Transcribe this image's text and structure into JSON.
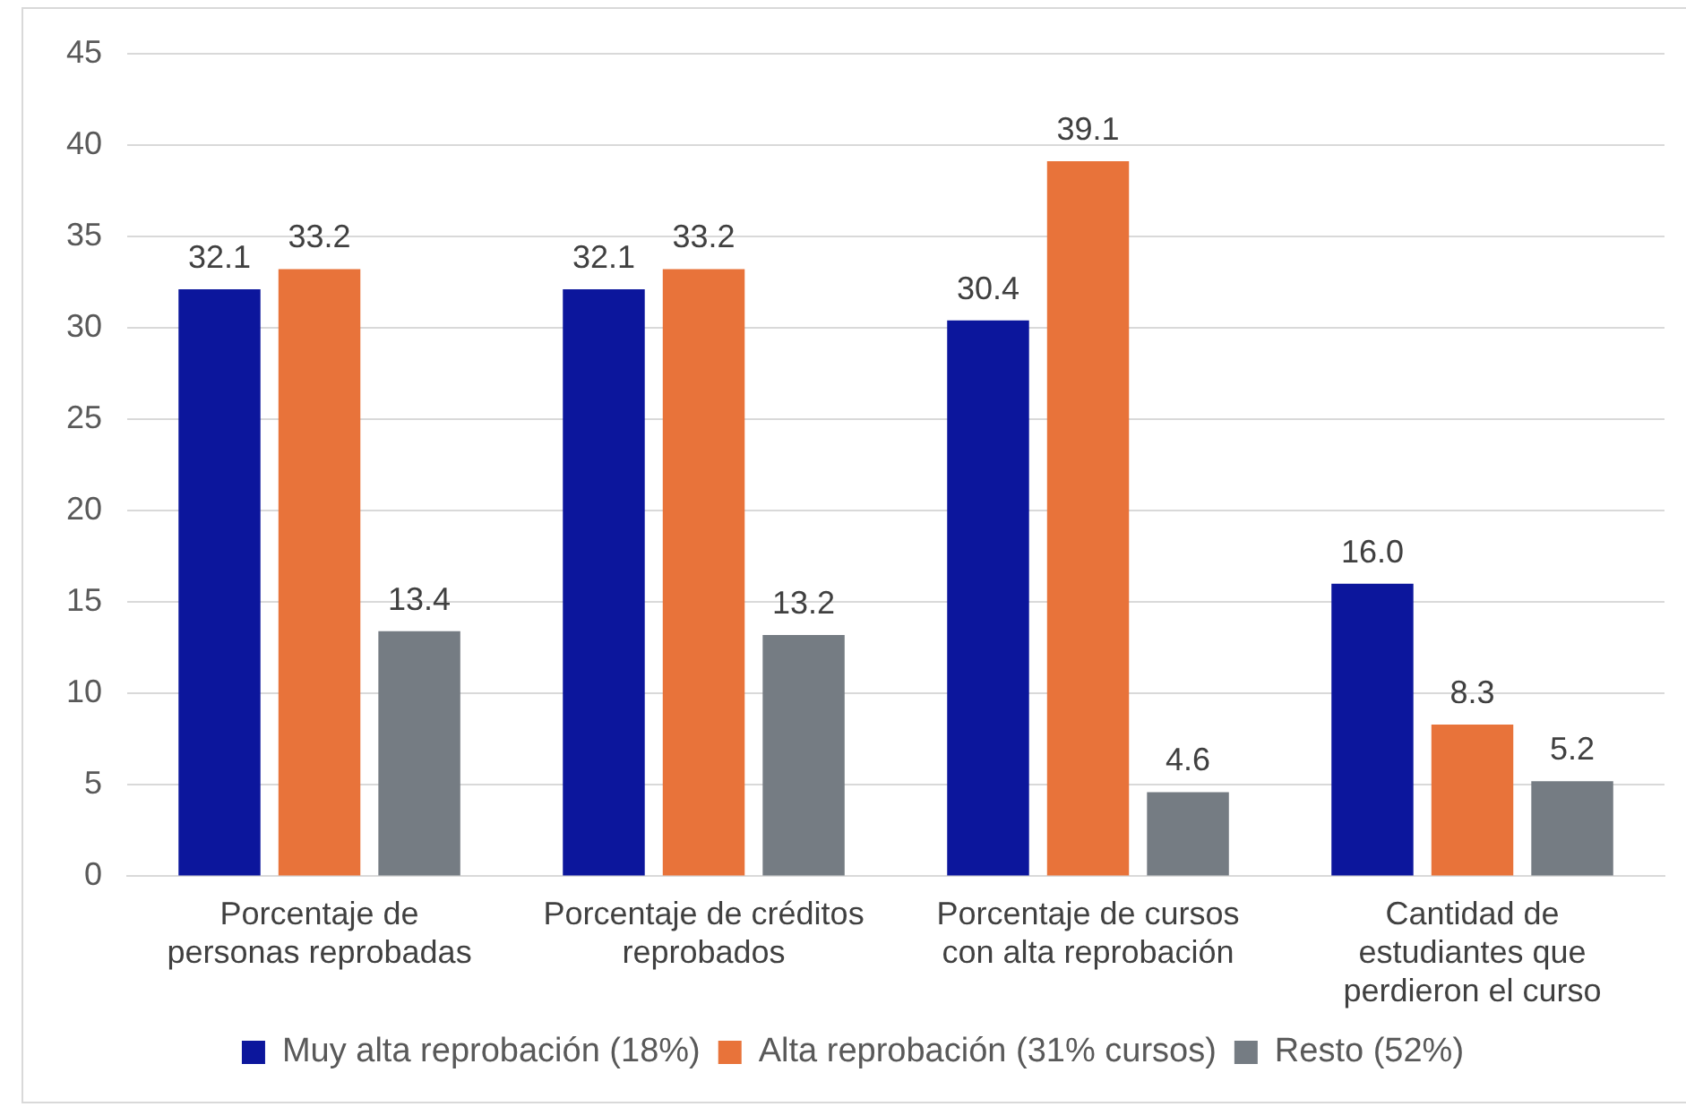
{
  "chart_data": {
    "type": "bar",
    "categories": [
      "Porcentaje de personas reprobadas",
      "Porcentaje de créditos reprobados",
      "Porcentaje de cursos con alta reprobación",
      "Cantidad de estudiantes que perdieron el curso"
    ],
    "series": [
      {
        "name": "Muy alta reprobación (18%)",
        "color": "#0c169c",
        "values": [
          32.1,
          32.1,
          30.4,
          16.0
        ],
        "value_labels": [
          "32.1",
          "32.1",
          "30.4",
          "16.0"
        ]
      },
      {
        "name": "Alta reprobación (31% cursos)",
        "color": "#e8733a",
        "values": [
          33.2,
          33.2,
          39.1,
          8.3
        ],
        "value_labels": [
          "33.2",
          "33.2",
          "39.1",
          "8.3"
        ]
      },
      {
        "name": "Resto (52%)",
        "color": "#757c83",
        "values": [
          13.4,
          13.2,
          4.6,
          5.2
        ],
        "value_labels": [
          "13.4",
          "13.2",
          "4.6",
          "5.2"
        ]
      }
    ],
    "ylim": [
      0,
      45
    ],
    "yticks": [
      0,
      5,
      10,
      15,
      20,
      25,
      30,
      35,
      40,
      45
    ],
    "grid": "y",
    "legend": "bottom"
  }
}
